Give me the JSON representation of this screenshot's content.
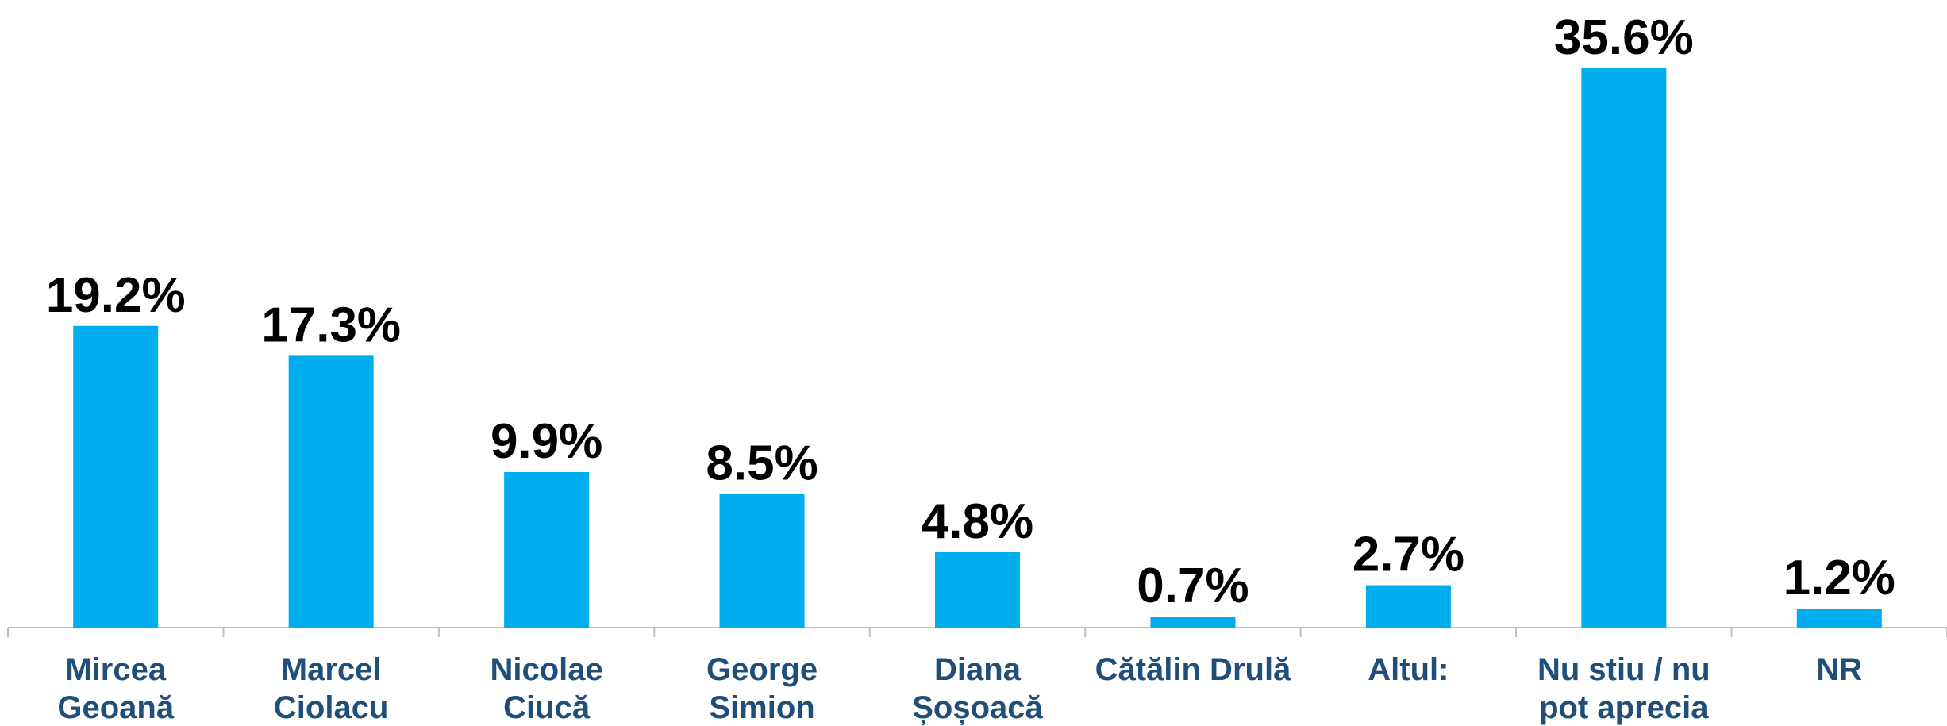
{
  "chart_data": {
    "type": "bar",
    "title": "",
    "xlabel": "",
    "ylabel": "",
    "ylim": [
      0,
      36
    ],
    "grid": false,
    "legend": "none",
    "bar_color": "#00aeef",
    "category_color": "#1f4e79",
    "categories": [
      [
        "Mircea",
        "Geoană"
      ],
      [
        "Marcel",
        "Ciolacu"
      ],
      [
        "Nicolae",
        "Ciucă"
      ],
      [
        "George",
        "Simion"
      ],
      [
        "Diana",
        "Șoșoacă"
      ],
      [
        "Cătălin Drulă"
      ],
      [
        "Altul:"
      ],
      [
        "Nu stiu / nu",
        "pot aprecia"
      ],
      [
        "NR"
      ]
    ],
    "values": [
      19.2,
      17.3,
      9.9,
      8.5,
      4.8,
      0.7,
      2.7,
      35.6,
      1.2
    ],
    "value_labels": [
      "19.2%",
      "17.3%",
      "9.9%",
      "8.5%",
      "4.8%",
      "0.7%",
      "2.7%",
      "35.6%",
      "1.2%"
    ]
  }
}
